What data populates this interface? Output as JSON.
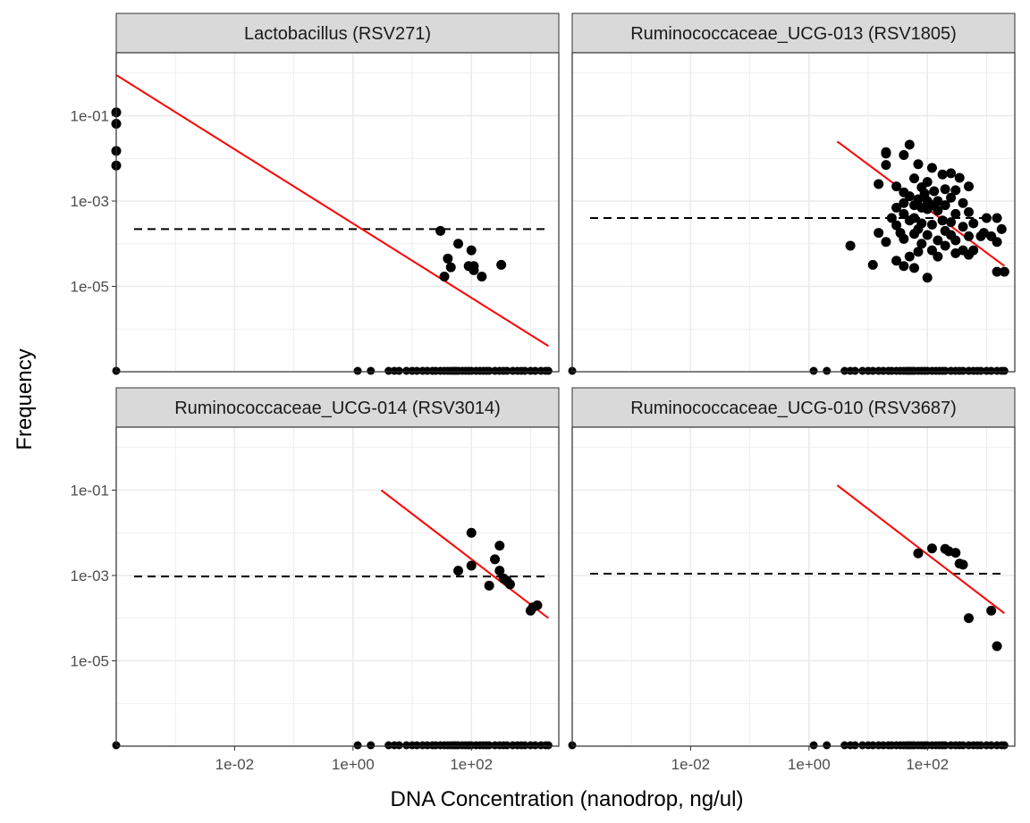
{
  "chart_data": {
    "type": "scatter",
    "layout": "facet 2x2",
    "xlabel": "DNA Concentration (nanodrop, ng/ul)",
    "ylabel": "Frequency",
    "xscale": "log10",
    "yscale": "log10",
    "xlim": [
      0.0001,
      3000
    ],
    "ylim": [
      1e-07,
      3
    ],
    "x_ticks": [
      "1e-02",
      "1e+00",
      "1e+02"
    ],
    "y_ticks": [
      "1e-01",
      "1e-03",
      "1e-05"
    ],
    "grid": true,
    "colors": {
      "points": "#000000",
      "fit_line": "#ff0000",
      "reference_line": "#000000",
      "strip_background": "#d9d9d9",
      "grid": "#ebebeb",
      "panel_border": "#333333"
    },
    "panels": [
      {
        "title": "Lactobacillus (RSV271)",
        "reference_y": 0.00022,
        "fit_line": [
          [
            0.0001,
            0.9
          ],
          [
            2000,
            4e-07
          ]
        ],
        "points": [
          [
            0.0001,
            0.12
          ],
          [
            0.0001,
            0.065
          ],
          [
            0.0001,
            0.015
          ],
          [
            0.0001,
            0.0068
          ],
          [
            30,
            0.0002
          ],
          [
            60,
            0.0001
          ],
          [
            100,
            7e-05
          ],
          [
            40,
            4.5e-05
          ],
          [
            45,
            2.8e-05
          ],
          [
            90,
            3e-05
          ],
          [
            110,
            3e-05
          ],
          [
            110,
            2.4e-05
          ],
          [
            35,
            1.7e-05
          ],
          [
            150,
            1.7e-05
          ],
          [
            320,
            3.2e-05
          ]
        ],
        "zero_points": [
          0.0001,
          1.2,
          2,
          4,
          5,
          6,
          8,
          10,
          12,
          15,
          18,
          22,
          25,
          30,
          35,
          40,
          45,
          50,
          55,
          60,
          70,
          80,
          90,
          100,
          120,
          140,
          160,
          180,
          200,
          250,
          300,
          350,
          400,
          500,
          600,
          700,
          800,
          1000,
          1200,
          1500,
          1800,
          2000
        ]
      },
      {
        "title": "Ruminococcaceae_UCG-013 (RSV1805)",
        "reference_y": 0.0004,
        "fit_line": [
          [
            3,
            0.025
          ],
          [
            2000,
            3e-05
          ]
        ],
        "points": [
          [
            50,
            0.021
          ],
          [
            20,
            0.014
          ],
          [
            20,
            0.013
          ],
          [
            40,
            0.012
          ],
          [
            20,
            0.007
          ],
          [
            70,
            0.0073
          ],
          [
            120,
            0.006
          ],
          [
            180,
            0.0042
          ],
          [
            250,
            0.0045
          ],
          [
            350,
            0.0035
          ],
          [
            60,
            0.0034
          ],
          [
            100,
            0.0028
          ],
          [
            15,
            0.0025
          ],
          [
            500,
            0.0022
          ],
          [
            30,
            0.0022
          ],
          [
            80,
            0.0021
          ],
          [
            200,
            0.0019
          ],
          [
            300,
            0.0018
          ],
          [
            130,
            0.0017
          ],
          [
            40,
            0.0016
          ],
          [
            90,
            0.0015
          ],
          [
            50,
            0.0013
          ],
          [
            250,
            0.0012
          ],
          [
            70,
            0.0011
          ],
          [
            100,
            0.001
          ],
          [
            150,
            0.001
          ],
          [
            40,
            0.0009
          ],
          [
            400,
            0.0009
          ],
          [
            60,
            0.0008
          ],
          [
            120,
            0.0008
          ],
          [
            200,
            0.0008
          ],
          [
            30,
            0.0007
          ],
          [
            80,
            0.0007
          ],
          [
            100,
            0.00065
          ],
          [
            150,
            0.0006
          ],
          [
            500,
            0.00055
          ],
          [
            40,
            0.0005
          ],
          [
            300,
            0.0005
          ],
          [
            1000,
            0.0004
          ],
          [
            25,
            0.0004
          ],
          [
            60,
            0.0004
          ],
          [
            1500,
            0.0004
          ],
          [
            50,
            0.00035
          ],
          [
            180,
            0.00035
          ],
          [
            250,
            0.00032
          ],
          [
            80,
            0.0003
          ],
          [
            600,
            0.0003
          ],
          [
            120,
            0.00028
          ],
          [
            30,
            0.00027
          ],
          [
            400,
            0.00025
          ],
          [
            1800,
            0.00022
          ],
          [
            70,
            0.00022
          ],
          [
            200,
            0.0002
          ],
          [
            15,
            0.00018
          ],
          [
            900,
            0.00018
          ],
          [
            35,
            0.00018
          ],
          [
            60,
            0.00017
          ],
          [
            100,
            0.00016
          ],
          [
            250,
            0.00016
          ],
          [
            500,
            0.00015
          ],
          [
            800,
            0.00015
          ],
          [
            1200,
            0.00015
          ],
          [
            40,
            0.00013
          ],
          [
            150,
            0.00012
          ],
          [
            300,
            0.00012
          ],
          [
            20,
            0.00011
          ],
          [
            1500,
            0.00011
          ],
          [
            80,
            0.0001
          ],
          [
            5,
            9e-05
          ],
          [
            200,
            9e-05
          ],
          [
            120,
            7e-05
          ],
          [
            400,
            7e-05
          ],
          [
            600,
            7e-05
          ],
          [
            70,
            6.5e-05
          ],
          [
            300,
            6e-05
          ],
          [
            50,
            5e-05
          ],
          [
            150,
            5e-05
          ],
          [
            500,
            5.5e-05
          ],
          [
            30,
            4e-05
          ],
          [
            12,
            3.2e-05
          ],
          [
            40,
            3e-05
          ],
          [
            1500,
            2.2e-05
          ],
          [
            2000,
            2.2e-05
          ],
          [
            60,
            2.7e-05
          ],
          [
            100,
            1.6e-05
          ]
        ],
        "zero_points": [
          0.0001,
          1.2,
          2,
          4,
          5,
          6,
          8,
          10,
          12,
          15,
          18,
          22,
          25,
          30,
          35,
          40,
          45,
          50,
          55,
          60,
          70,
          80,
          90,
          100,
          120,
          140,
          160,
          180,
          200,
          250,
          300,
          350,
          400,
          500,
          600,
          700,
          800,
          1000,
          1200,
          1500,
          1800,
          2000
        ]
      },
      {
        "title": "Ruminococcaceae_UCG-014 (RSV3014)",
        "reference_y": 0.00095,
        "fit_line": [
          [
            3,
            0.1
          ],
          [
            2000,
            0.0001
          ]
        ],
        "points": [
          [
            100,
            0.01
          ],
          [
            300,
            0.005
          ],
          [
            250,
            0.0024
          ],
          [
            100,
            0.0017
          ],
          [
            60,
            0.0013
          ],
          [
            300,
            0.0013
          ],
          [
            350,
            0.00085
          ],
          [
            400,
            0.00075
          ],
          [
            450,
            0.00062
          ],
          [
            200,
            0.00058
          ],
          [
            1000,
            0.00015
          ],
          [
            1100,
            0.00018
          ],
          [
            1300,
            0.0002
          ]
        ],
        "zero_points": [
          0.0001,
          1.2,
          2,
          4,
          5,
          6,
          8,
          10,
          12,
          15,
          18,
          22,
          25,
          30,
          35,
          40,
          45,
          50,
          55,
          60,
          70,
          80,
          90,
          100,
          120,
          140,
          160,
          180,
          200,
          250,
          300,
          350,
          400,
          500,
          600,
          700,
          800,
          1000,
          1200,
          1500,
          1800,
          2000
        ]
      },
      {
        "title": "Ruminococcaceae_UCG-010 (RSV3687)",
        "reference_y": 0.0011,
        "fit_line": [
          [
            3,
            0.13
          ],
          [
            2000,
            0.00013
          ]
        ],
        "points": [
          [
            120,
            0.0043
          ],
          [
            200,
            0.0042
          ],
          [
            230,
            0.0037
          ],
          [
            300,
            0.0034
          ],
          [
            70,
            0.0033
          ],
          [
            350,
            0.0019
          ],
          [
            400,
            0.0018
          ],
          [
            500,
            0.0001
          ],
          [
            1200,
            0.00015
          ],
          [
            1500,
            2.2e-05
          ]
        ],
        "zero_points": [
          0.0001,
          1.2,
          2,
          4,
          5,
          6,
          8,
          10,
          12,
          15,
          18,
          22,
          25,
          30,
          35,
          40,
          45,
          50,
          55,
          60,
          70,
          80,
          90,
          100,
          120,
          140,
          160,
          180,
          200,
          250,
          300,
          350,
          400,
          500,
          600,
          700,
          800,
          1000,
          1200,
          1500,
          1800,
          2000
        ]
      }
    ]
  }
}
